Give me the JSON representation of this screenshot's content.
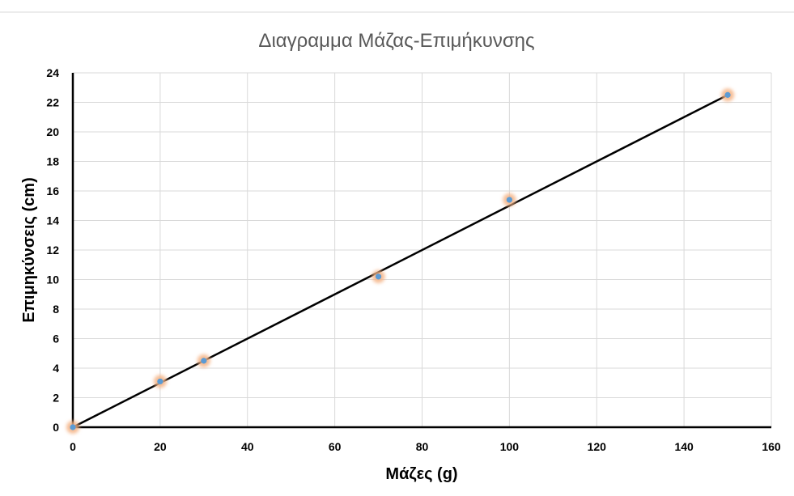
{
  "colors": {
    "point": "#5b9bd5",
    "point_glow": "#f4b183",
    "trendline": "#000000",
    "grid": "#d9d9d9",
    "title": "#595959"
  },
  "chart_data": {
    "type": "scatter",
    "title": "Διαγραμμα Μάζας-Επιμήκυνσης",
    "xlabel": "Μάζες (g)",
    "ylabel": "Επιμηκύνσεις (cm)",
    "xlim": [
      0,
      160
    ],
    "ylim": [
      0,
      24
    ],
    "x_ticks": [
      0,
      20,
      40,
      60,
      80,
      100,
      120,
      140,
      160
    ],
    "y_ticks": [
      0,
      2,
      4,
      6,
      8,
      10,
      12,
      14,
      16,
      18,
      20,
      22,
      24
    ],
    "grid": true,
    "legend": "none",
    "series": [
      {
        "x": [
          0,
          20,
          30,
          70,
          100,
          150
        ],
        "y": [
          0,
          3.1,
          4.5,
          10.2,
          15.4,
          22.5
        ]
      }
    ],
    "trendline": {
      "type": "linear",
      "x": [
        0,
        150
      ],
      "y": [
        0,
        22.5
      ]
    }
  }
}
